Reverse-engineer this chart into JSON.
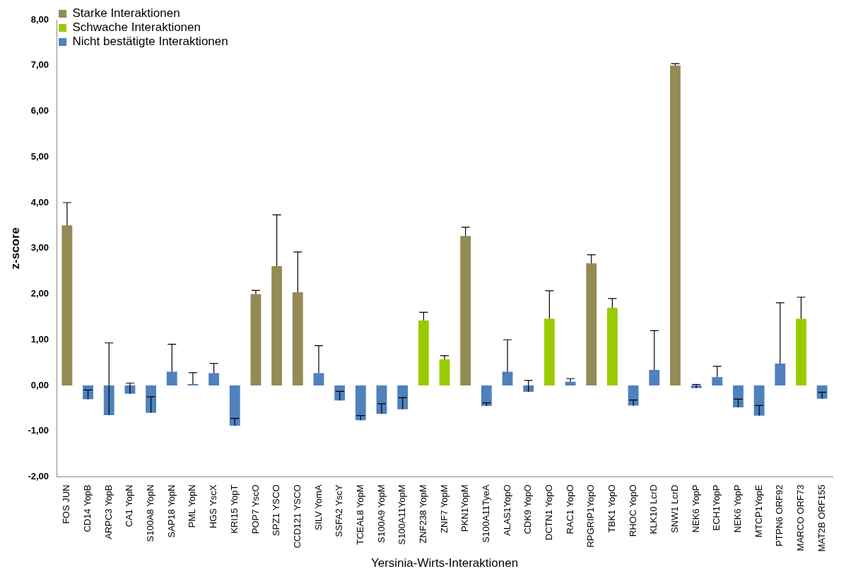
{
  "chart_data": {
    "type": "bar",
    "xlabel": "Yersinia-Wirts-Interaktionen",
    "ylabel": "z-score",
    "categories": [
      "FOS JUN",
      "CD14 YopB",
      "ARPC3 YopB",
      "CA1 YopN",
      "S100A8 YopN",
      "SAP18 YopN",
      "PML YopN",
      "HGS YscX",
      "KRI15 YopT",
      "POP7 YscO",
      "SPZ1 YSCO",
      "CCD121 YSCO",
      "SILV YomA",
      "SSFA2 YscY",
      "TCEAL8 YopM",
      "S100A9 YopM",
      "S100A11YopM",
      "ZNF238 YopM",
      "ZNF7 YopM",
      "PKN1YopM",
      "S100A11TyeA",
      "ALAS1YopO",
      "CDK9 YopO",
      "DCTN1 YopO",
      "RAC1 YopO",
      "RPGRIP1YopO",
      "TBK1 YopO",
      "RHOC YopO",
      "KLK10 LcrD",
      "SNW1 LcrD",
      "NEK6 YopP",
      "ECH1YopP",
      "NEK6 YopP",
      "MTCP1YopE",
      "PTPN6 ORF92",
      "MARCO ORF73",
      "MAT2B ORF155"
    ],
    "series": [
      {
        "name": "Starke Interaktionen",
        "color": "#948a54",
        "values": [
          3.5,
          null,
          null,
          null,
          null,
          null,
          null,
          null,
          null,
          2.0,
          2.61,
          2.04,
          null,
          null,
          null,
          null,
          null,
          null,
          null,
          3.27,
          null,
          null,
          null,
          null,
          null,
          2.67,
          null,
          null,
          null,
          7.0,
          null,
          null,
          null,
          null,
          null,
          null,
          null
        ],
        "errors": [
          [
            3.5,
            4.0
          ],
          null,
          null,
          null,
          null,
          null,
          null,
          null,
          null,
          [
            2.0,
            2.08
          ],
          [
            2.61,
            3.73
          ],
          [
            2.04,
            2.92
          ],
          null,
          null,
          null,
          null,
          null,
          null,
          null,
          [
            3.27,
            3.46
          ],
          null,
          null,
          null,
          null,
          null,
          [
            2.67,
            2.86
          ],
          null,
          null,
          null,
          [
            7.0,
            7.04
          ],
          null,
          null,
          null,
          null,
          null,
          null,
          null
        ]
      },
      {
        "name": "Schwache Interaktionen",
        "color": "#99cc00",
        "values": [
          null,
          null,
          null,
          null,
          null,
          null,
          null,
          null,
          null,
          null,
          null,
          null,
          null,
          null,
          null,
          null,
          null,
          1.42,
          0.57,
          null,
          null,
          null,
          null,
          1.46,
          null,
          null,
          1.7,
          null,
          null,
          null,
          null,
          null,
          null,
          null,
          null,
          1.46,
          null
        ],
        "errors": [
          null,
          null,
          null,
          null,
          null,
          null,
          null,
          null,
          null,
          null,
          null,
          null,
          null,
          null,
          null,
          null,
          null,
          [
            1.42,
            1.6
          ],
          [
            0.57,
            0.65
          ],
          null,
          null,
          null,
          null,
          [
            1.46,
            2.07
          ],
          null,
          null,
          [
            1.7,
            1.9
          ],
          null,
          null,
          null,
          null,
          null,
          null,
          null,
          null,
          [
            1.46,
            1.93
          ],
          null
        ]
      },
      {
        "name": "Nicht bestätigte Interaktionen",
        "color": "#4f81bd",
        "values": [
          null,
          -0.3,
          -0.65,
          -0.18,
          -0.6,
          0.3,
          0.03,
          0.27,
          -0.88,
          null,
          null,
          null,
          0.27,
          -0.33,
          -0.76,
          -0.62,
          -0.52,
          null,
          null,
          null,
          -0.45,
          0.3,
          -0.14,
          null,
          0.08,
          null,
          null,
          -0.44,
          0.34,
          null,
          -0.06,
          0.18,
          -0.48,
          -0.66,
          0.48,
          null,
          -0.29
        ],
        "errors": [
          null,
          [
            -0.3,
            -0.1
          ],
          [
            -0.65,
            0.93
          ],
          [
            -0.18,
            0.05
          ],
          [
            -0.6,
            -0.25
          ],
          [
            0.3,
            0.9
          ],
          [
            0.03,
            0.28
          ],
          [
            0.27,
            0.48
          ],
          [
            -0.88,
            -0.72
          ],
          null,
          null,
          null,
          [
            0.27,
            0.87
          ],
          [
            -0.33,
            -0.13
          ],
          [
            -0.76,
            -0.66
          ],
          [
            -0.62,
            -0.4
          ],
          [
            -0.52,
            -0.27
          ],
          null,
          null,
          null,
          [
            -0.45,
            -0.38
          ],
          [
            0.3,
            1.0
          ],
          [
            -0.14,
            0.11
          ],
          null,
          [
            0.08,
            0.15
          ],
          null,
          null,
          [
            -0.44,
            -0.32
          ],
          [
            0.34,
            1.2
          ],
          null,
          [
            -0.06,
            0.02
          ],
          [
            0.18,
            0.42
          ],
          [
            -0.48,
            -0.3
          ],
          [
            -0.66,
            -0.44
          ],
          [
            0.48,
            1.81
          ],
          null,
          [
            -0.29,
            -0.15
          ]
        ]
      }
    ],
    "ylim": [
      -2,
      8
    ],
    "yticks": [
      {
        "value": -2,
        "label": "-2,00"
      },
      {
        "value": -1,
        "label": "-1,00"
      },
      {
        "value": 0,
        "label": "0,00"
      },
      {
        "value": 1,
        "label": "1,00"
      },
      {
        "value": 2,
        "label": "2,00"
      },
      {
        "value": 3,
        "label": "3,00"
      },
      {
        "value": 4,
        "label": "4,00"
      },
      {
        "value": 5,
        "label": "5,00"
      },
      {
        "value": 6,
        "label": "6,00"
      },
      {
        "value": 7,
        "label": "7,00"
      },
      {
        "value": 8,
        "label": "8,00"
      }
    ],
    "grid": false,
    "legend": "top left"
  }
}
